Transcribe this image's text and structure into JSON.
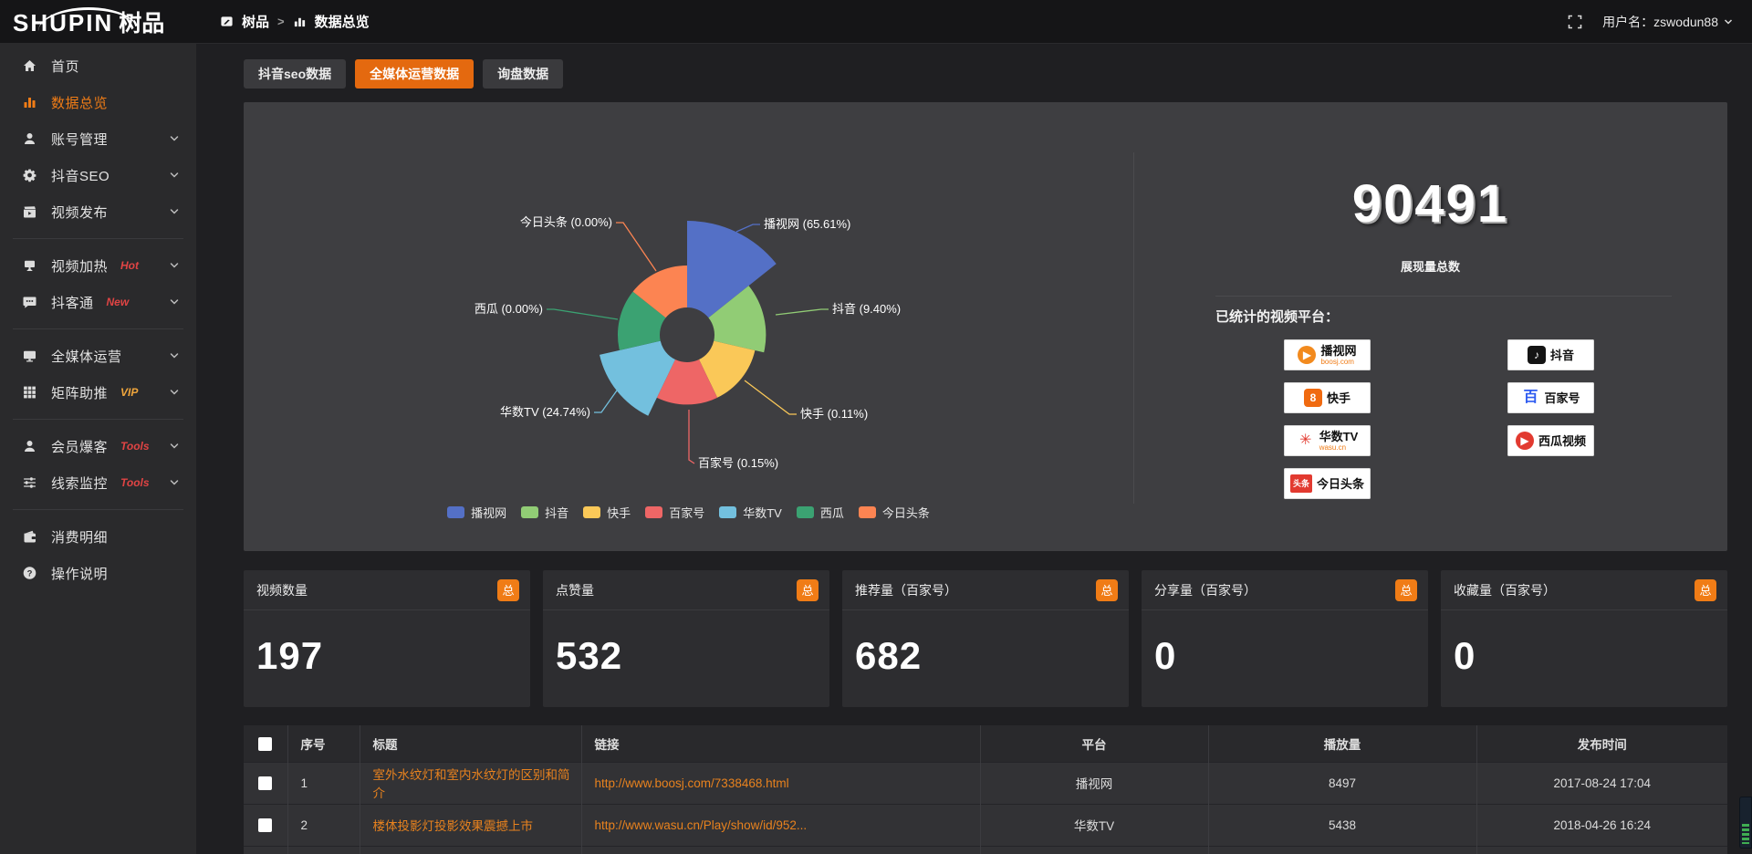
{
  "topbar": {
    "logo_main": "SHUPIN",
    "logo_sub": "树品",
    "breadcrumb": [
      "树品",
      "数据总览"
    ],
    "breadcrumb_sep": ">",
    "username": "用户名：zswodun88"
  },
  "sidebar": {
    "items": [
      {
        "id": "home",
        "icon": "home",
        "label": "首页"
      },
      {
        "id": "data-overview",
        "icon": "chart",
        "label": "数据总览",
        "active": true
      },
      {
        "id": "account-manage",
        "icon": "user",
        "label": "账号管理",
        "chevron": true
      },
      {
        "id": "douyin-seo",
        "icon": "gear",
        "label": "抖音SEO",
        "chevron": true
      },
      {
        "id": "video-publish",
        "icon": "publish",
        "label": "视频发布",
        "chevron": true
      },
      {
        "divider": true
      },
      {
        "id": "video-heat",
        "icon": "heat",
        "label": "视频加热",
        "badge": "Hot",
        "badge_color": "#e04444",
        "chevron": true
      },
      {
        "id": "douketong",
        "icon": "chat",
        "label": "抖客通",
        "badge": "New",
        "badge_color": "#e04444",
        "chevron": true
      },
      {
        "divider": true
      },
      {
        "id": "media-ops",
        "icon": "monitor",
        "label": "全媒体运营",
        "chevron": true
      },
      {
        "id": "matrix-boost",
        "icon": "grid",
        "label": "矩阵助推",
        "badge": "VIP",
        "badge_color": "#f0a63c",
        "chevron": true
      },
      {
        "divider": true
      },
      {
        "id": "member-baoke",
        "icon": "user",
        "label": "会员爆客",
        "badge": "Tools",
        "badge_color": "#e04444",
        "chevron": true
      },
      {
        "id": "clue-monitor",
        "icon": "sliders",
        "label": "线索监控",
        "badge": "Tools",
        "badge_color": "#e04444",
        "chevron": true
      },
      {
        "divider": true
      },
      {
        "id": "consume-detail",
        "icon": "wallet",
        "label": "消费明细"
      },
      {
        "id": "help",
        "icon": "question",
        "label": "操作说明"
      }
    ]
  },
  "tabs": [
    {
      "label": "抖音seo数据",
      "active": false
    },
    {
      "label": "全媒体运营数据",
      "active": true
    },
    {
      "label": "询盘数据",
      "active": false
    }
  ],
  "chart_data": {
    "type": "pie",
    "variant": "nightingale-rose-donut",
    "legend_position": "bottom",
    "items": [
      {
        "name": "播视网",
        "pct": 65.61,
        "color": "#5470c6"
      },
      {
        "name": "抖音",
        "pct": 9.4,
        "color": "#91cc75"
      },
      {
        "name": "快手",
        "pct": 0.11,
        "color": "#fac858"
      },
      {
        "name": "百家号",
        "pct": 0.15,
        "color": "#ee6666"
      },
      {
        "name": "华数TV",
        "pct": 24.74,
        "color": "#73c0de"
      },
      {
        "name": "西瓜",
        "pct": 0.0,
        "color": "#3ba272"
      },
      {
        "name": "今日头条",
        "pct": 0.0,
        "color": "#fc8452"
      }
    ]
  },
  "summary": {
    "total": "90491",
    "total_label": "展现量总数",
    "platforms_title": "已统计的视频平台：",
    "platforms": [
      {
        "label": "播视网",
        "sub": "boosj.com",
        "glyph": "▶",
        "icon_bg": "#f28a1e",
        "icon_fg": "#ffffff",
        "shape": "circle"
      },
      {
        "label": "抖音",
        "glyph": "♪",
        "icon_bg": "#141414",
        "icon_fg": "#ffffff",
        "shape": "square"
      },
      {
        "label": "快手",
        "glyph": "8",
        "icon_bg": "#f06a10",
        "icon_fg": "#ffffff",
        "shape": "square"
      },
      {
        "label": "百家号",
        "glyph": "百",
        "icon_bg": "#ffffff",
        "icon_fg": "#2d5bf0",
        "shape": "plain"
      },
      {
        "label": "华数TV",
        "sub": "wasu.cn",
        "glyph": "✳",
        "icon_bg": "#ffffff",
        "icon_fg": "#e23a30",
        "shape": "plain"
      },
      {
        "label": "西瓜视频",
        "glyph": "▶",
        "icon_bg": "#e23a30",
        "icon_fg": "#ffffff",
        "shape": "circle"
      },
      {
        "label": "今日头条",
        "glyph": "头条",
        "icon_bg": "#e23a30",
        "icon_fg": "#ffffff",
        "shape": "square-wide"
      }
    ]
  },
  "stat_cards": [
    {
      "title": "视频数量",
      "badge": "总",
      "value": "197"
    },
    {
      "title": "点赞量",
      "badge": "总",
      "value": "532"
    },
    {
      "title": "推荐量（百家号）",
      "badge": "总",
      "value": "682"
    },
    {
      "title": "分享量（百家号）",
      "badge": "总",
      "value": "0"
    },
    {
      "title": "收藏量（百家号）",
      "badge": "总",
      "value": "0"
    }
  ],
  "table": {
    "headers": [
      "序号",
      "标题",
      "链接",
      "平台",
      "播放量",
      "发布时间"
    ],
    "rows": [
      {
        "no": "1",
        "title": "室外水纹灯和室内水纹灯的区别和简介",
        "link": "http://www.boosj.com/7338468.html",
        "platform": "播视网",
        "plays": "8497",
        "time": "2017-08-24 17:04"
      },
      {
        "no": "2",
        "title": "楼体投影灯投影效果震撼上市",
        "link": "http://www.wasu.cn/Play/show/id/952...",
        "platform": "华数TV",
        "plays": "5438",
        "time": "2018-04-26 16:24"
      }
    ]
  }
}
